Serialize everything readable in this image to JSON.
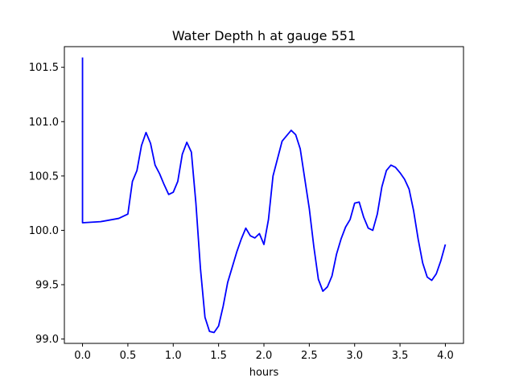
{
  "chart_data": {
    "type": "line",
    "title": "Water Depth h at gauge 551",
    "xlabel": "hours",
    "ylabel": "",
    "xlim": [
      -0.2,
      4.2
    ],
    "ylim": [
      98.96,
      101.69
    ],
    "xticks": [
      0.0,
      0.5,
      1.0,
      1.5,
      2.0,
      2.5,
      3.0,
      3.5,
      4.0
    ],
    "xtick_labels": [
      "0.0",
      "0.5",
      "1.0",
      "1.5",
      "2.0",
      "2.5",
      "3.0",
      "3.5",
      "4.0"
    ],
    "yticks": [
      99.0,
      99.5,
      100.0,
      100.5,
      101.0,
      101.5
    ],
    "ytick_labels": [
      "99.0",
      "99.5",
      "100.0",
      "100.5",
      "101.0",
      "101.5"
    ],
    "grid": false,
    "series": [
      {
        "color": "#0000ff",
        "x": [
          0.0,
          0.0,
          0.0,
          0.2,
          0.4,
          0.5,
          0.55,
          0.6,
          0.65,
          0.7,
          0.75,
          0.8,
          0.85,
          0.9,
          0.95,
          1.0,
          1.05,
          1.1,
          1.15,
          1.2,
          1.25,
          1.3,
          1.35,
          1.4,
          1.45,
          1.5,
          1.55,
          1.6,
          1.7,
          1.75,
          1.8,
          1.85,
          1.9,
          1.95,
          2.0,
          2.05,
          2.1,
          2.2,
          2.3,
          2.35,
          2.4,
          2.5,
          2.55,
          2.6,
          2.65,
          2.7,
          2.75,
          2.8,
          2.85,
          2.9,
          2.95,
          3.0,
          3.05,
          3.1,
          3.15,
          3.2,
          3.25,
          3.3,
          3.35,
          3.4,
          3.45,
          3.5,
          3.55,
          3.6,
          3.65,
          3.7,
          3.75,
          3.8,
          3.85,
          3.9,
          3.95,
          4.0
        ],
        "y": [
          101.59,
          100.07,
          100.07,
          100.08,
          100.11,
          100.15,
          100.45,
          100.55,
          100.78,
          100.9,
          100.8,
          100.6,
          100.52,
          100.42,
          100.33,
          100.35,
          100.45,
          100.7,
          100.81,
          100.72,
          100.25,
          99.65,
          99.2,
          99.07,
          99.06,
          99.12,
          99.3,
          99.52,
          99.8,
          99.92,
          100.02,
          99.95,
          99.93,
          99.97,
          99.87,
          100.1,
          100.5,
          100.82,
          100.92,
          100.88,
          100.75,
          100.2,
          99.85,
          99.55,
          99.44,
          99.48,
          99.58,
          99.78,
          99.92,
          100.03,
          100.1,
          100.25,
          100.26,
          100.12,
          100.02,
          100.0,
          100.15,
          100.4,
          100.55,
          100.6,
          100.58,
          100.53,
          100.47,
          100.38,
          100.18,
          99.92,
          99.7,
          99.57,
          99.54,
          99.6,
          99.72,
          99.87
        ]
      }
    ]
  }
}
